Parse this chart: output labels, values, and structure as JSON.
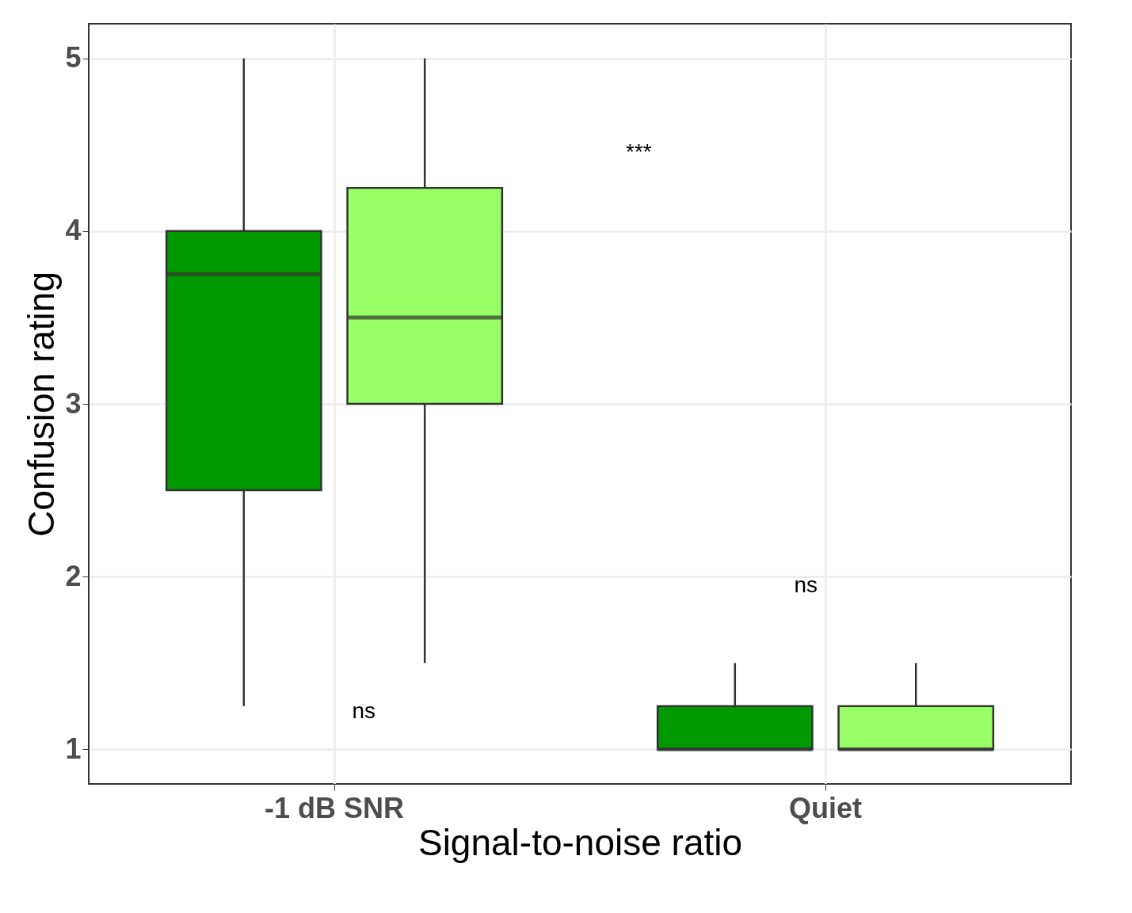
{
  "chart_data": {
    "type": "box",
    "xlabel": "Signal-to-noise ratio",
    "ylabel": "Confusion rating",
    "categories": [
      "-1 dB SNR",
      "Quiet"
    ],
    "series": [
      {
        "color": "#009900",
        "boxes": [
          {
            "low": 1.25,
            "q1": 2.5,
            "median": 3.75,
            "q3": 4,
            "high": 5
          },
          {
            "low": 1,
            "q1": 1,
            "median": 1,
            "q3": 1.25,
            "high": 1.5
          }
        ]
      },
      {
        "color": "#99ff66",
        "boxes": [
          {
            "low": 1.5,
            "q1": 3,
            "median": 3.5,
            "q3": 4.25,
            "high": 5
          },
          {
            "low": 1,
            "q1": 1,
            "median": 1,
            "q3": 1.25,
            "high": 1.5
          }
        ]
      }
    ],
    "ylim": [
      0.8,
      5.2
    ],
    "yticks": [
      1,
      2,
      3,
      4,
      5
    ],
    "grid": true,
    "annotations": [
      "***",
      "ns",
      "ns"
    ]
  }
}
